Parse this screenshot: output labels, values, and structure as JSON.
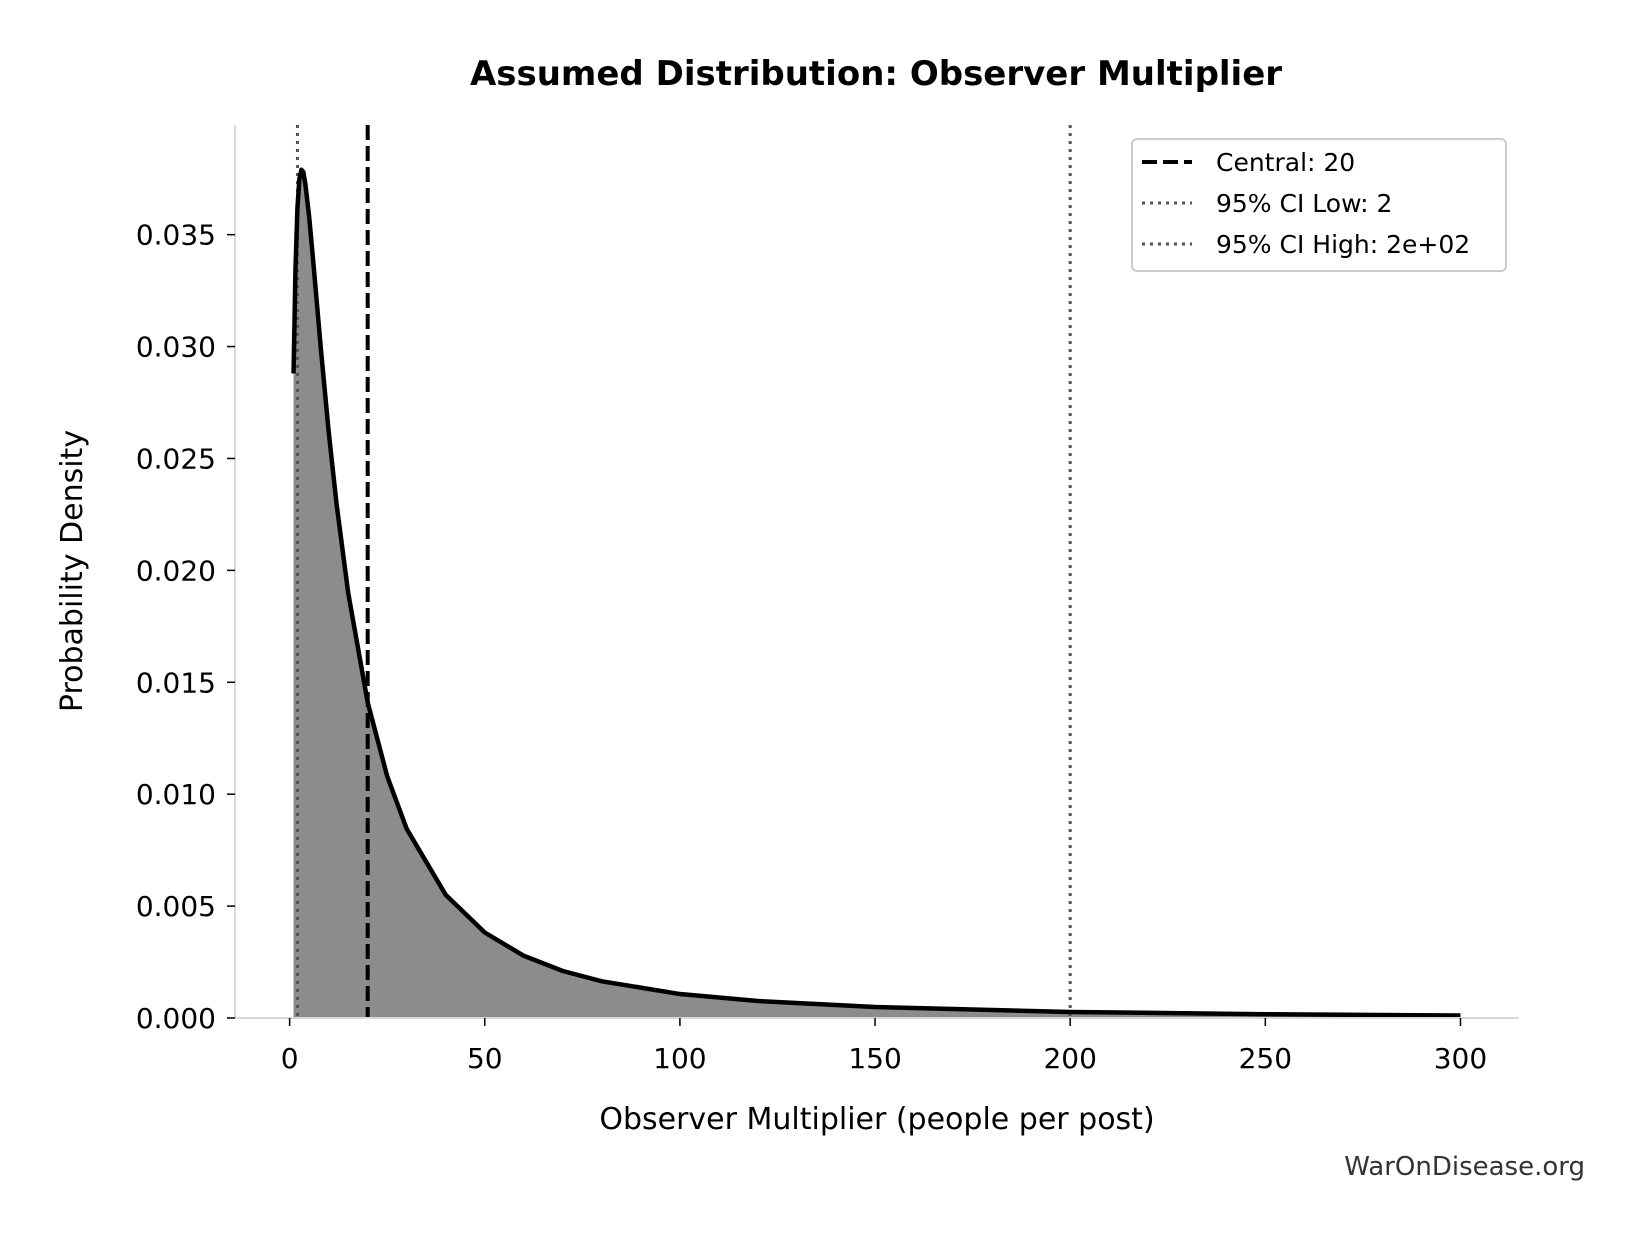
{
  "chart_data": {
    "type": "area",
    "title": "Assumed Distribution: Observer Multiplier",
    "xlabel": "Observer Multiplier (people per post)",
    "ylabel": "Probability Density",
    "xlim": [
      -14,
      315
    ],
    "ylim": [
      0,
      0.0399
    ],
    "xticks": [
      0,
      50,
      100,
      150,
      200,
      250,
      300
    ],
    "xtick_labels": [
      "0",
      "50",
      "100",
      "150",
      "200",
      "250",
      "300"
    ],
    "yticks": [
      0,
      0.005,
      0.01,
      0.015,
      0.02,
      0.025,
      0.03,
      0.035
    ],
    "ytick_labels": [
      "0.000",
      "0.005",
      "0.010",
      "0.015",
      "0.020",
      "0.025",
      "0.030",
      "0.035"
    ],
    "grid": false,
    "legend_position": "top-right",
    "series": [
      {
        "name": "",
        "style": "solid-with-fill",
        "color": "#000000",
        "fill_color": "#8c8c8c",
        "x": [
          1,
          1.5,
          2,
          2.5,
          3,
          3.5,
          4,
          5,
          6,
          7,
          8,
          10,
          12,
          15,
          20,
          25,
          30,
          40,
          50,
          60,
          70,
          80,
          100,
          120,
          150,
          200,
          250,
          300
        ],
        "y": [
          0.0288,
          0.0335,
          0.0362,
          0.0375,
          0.0379,
          0.0378,
          0.0373,
          0.0358,
          0.0339,
          0.0319,
          0.0299,
          0.0262,
          0.023,
          0.019,
          0.0141,
          0.0108,
          0.00845,
          0.0055,
          0.00382,
          0.00278,
          0.0021,
          0.00164,
          0.00107,
          0.00076,
          0.00049,
          0.00027,
          0.00017,
          0.00011
        ]
      }
    ],
    "reference_lines": [
      {
        "name": "Central: 20",
        "x": 20,
        "style": "dashed",
        "color": "#000000"
      },
      {
        "name": "95% CI Low: 2",
        "x": 2,
        "style": "dotted",
        "color": "#555555"
      },
      {
        "name": "95% CI High: 2e+02",
        "x": 200,
        "style": "dotted",
        "color": "#555555"
      }
    ]
  },
  "watermark": "WarOnDisease.org"
}
